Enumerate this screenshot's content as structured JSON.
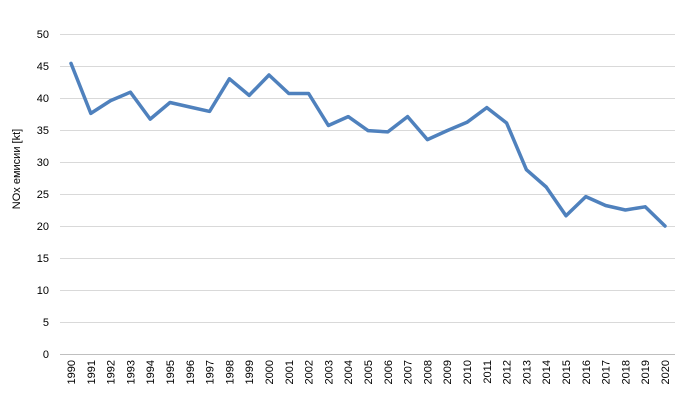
{
  "chart_data": {
    "type": "line",
    "title": "",
    "xlabel": "",
    "ylabel": "NOx емисии [kt]",
    "ylim": [
      0,
      50
    ],
    "ytick_step": 5,
    "grid": "horizontal",
    "legend": "none",
    "categories": [
      "1990",
      "1991",
      "1992",
      "1993",
      "1994",
      "1995",
      "1996",
      "1997",
      "1998",
      "1999",
      "2000",
      "2001",
      "2002",
      "2003",
      "2004",
      "2005",
      "2006",
      "2007",
      "2008",
      "2009",
      "2010",
      "2011",
      "2012",
      "2013",
      "2014",
      "2015",
      "2016",
      "2017",
      "2018",
      "2019",
      "2020"
    ],
    "series": [
      {
        "color": "#4f81bd",
        "values": [
          45.4,
          37.6,
          39.6,
          40.9,
          36.7,
          39.3,
          38.6,
          37.9,
          43.0,
          40.4,
          43.6,
          40.7,
          40.7,
          35.7,
          37.1,
          34.9,
          34.7,
          37.1,
          33.5,
          34.9,
          36.2,
          38.5,
          36.1,
          28.8,
          26.1,
          21.6,
          24.6,
          23.2,
          22.5,
          23.0,
          20.0
        ]
      }
    ],
    "colors": {
      "line": "#4f81bd",
      "grid": "#d9d9d9",
      "axis": "#bfbfbf",
      "text": "#000000"
    }
  }
}
